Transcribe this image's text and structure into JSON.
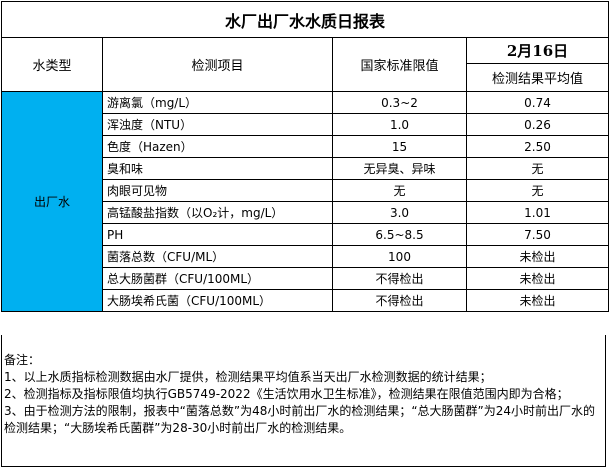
{
  "title": "水厂出厂水水质日报表",
  "headers": {
    "type": "水类型",
    "item": "检测项目",
    "limit": "国家标准限值",
    "date": "2月16日",
    "result": "检测结果平均值"
  },
  "water_type": "出厂水",
  "colors": {
    "type_cell": "#00b0f0"
  },
  "rows": [
    {
      "item": "游离氯（mg/L）",
      "limit": "0.3~2",
      "value": "0.74"
    },
    {
      "item": "浑浊度（NTU）",
      "limit": "1.0",
      "value": "0.26"
    },
    {
      "item": "色度（Hazen）",
      "limit": "15",
      "value": "2.50"
    },
    {
      "item": "臭和味",
      "limit": "无异臭、异味",
      "value": "无"
    },
    {
      "item": "肉眼可见物",
      "limit": "无",
      "value": "无"
    },
    {
      "item": "高锰酸盐指数（以O₂计，mg/L）",
      "limit": "3.0",
      "value": "1.01"
    },
    {
      "item": "PH",
      "limit": "6.5~8.5",
      "value": "7.50"
    },
    {
      "item": "菌落总数（CFU/ML）",
      "limit": "100",
      "value": "未检出"
    },
    {
      "item": "总大肠菌群（CFU/100ML）",
      "limit": "不得检出",
      "value": "未检出"
    },
    {
      "item": "大肠埃希氏菌（CFU/100ML）",
      "limit": "不得检出",
      "value": "未检出"
    }
  ],
  "notes": [
    "备注：",
    "1、以上水质指标检测数据由水厂提供，检测结果平均值系当天出厂水检测数据的统计结果；",
    "2、检测指标及指标限值均执行GB5749-2022《生活饮用水卫生标准》，检测结果在限值范围内即为合格；",
    "3、由于检测方法的限制，报表中“菌落总数”为48小时前出厂水的检测结果；“总大肠菌群”为24小时前出厂水的检测结果；“大肠埃希氏菌群”为28-30小时前出厂水的检测结果。"
  ]
}
